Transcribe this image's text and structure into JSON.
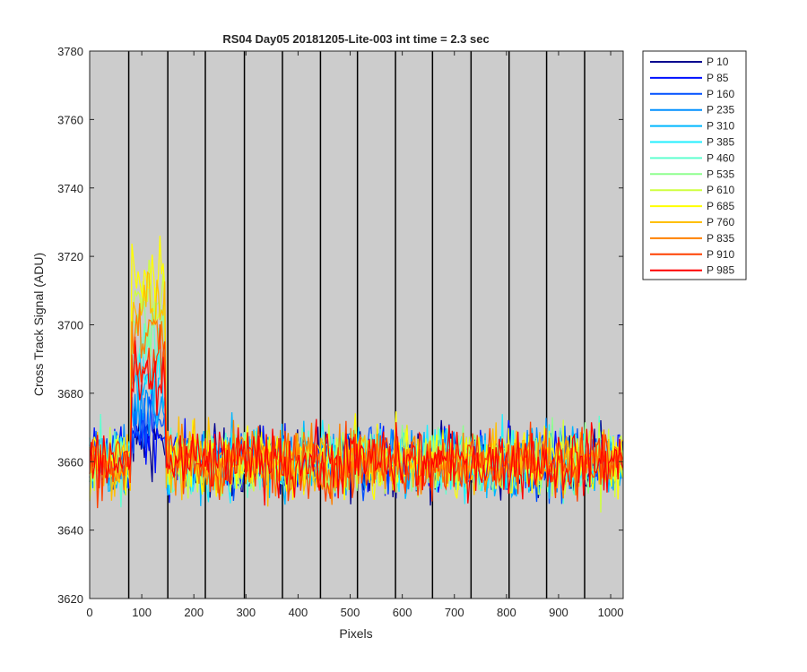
{
  "chart_data": {
    "type": "line",
    "title": "RS04 Day05 20181205-Lite-003 int time = 2.3 sec",
    "xlabel": "Pixels",
    "ylabel": "Cross Track Signal (ADU)",
    "xlim": [
      0,
      1024
    ],
    "ylim": [
      3620,
      3780
    ],
    "xticks": [
      0,
      100,
      200,
      300,
      400,
      500,
      600,
      700,
      800,
      900,
      1000
    ],
    "yticks": [
      3620,
      3640,
      3660,
      3680,
      3700,
      3720,
      3740,
      3760,
      3780
    ],
    "grid": false,
    "background": "#cccccc",
    "legend_position": "outside-top-right",
    "vertical_lines_x": [
      75,
      150,
      222,
      297,
      370,
      443,
      514,
      587,
      658,
      732,
      805,
      877,
      950
    ],
    "baseline": 3660,
    "noise_amplitude": 11,
    "bump": {
      "x_range": [
        80,
        145
      ],
      "note_peak_values": {
        "P 10": 3667,
        "P 85": 3669,
        "P 160": 3672,
        "P 235": 3676,
        "P 310": 3682,
        "P 385": 3688,
        "P 460": 3694,
        "P 535": 3701,
        "P 610": 3709,
        "P 685": 3715,
        "P 760": 3706,
        "P 835": 3697,
        "P 910": 3689,
        "P 985": 3682
      }
    },
    "series": [
      {
        "name": "P 10",
        "color": "#00008f"
      },
      {
        "name": "P 85",
        "color": "#0010ff"
      },
      {
        "name": "P 160",
        "color": "#0050ff"
      },
      {
        "name": "P 235",
        "color": "#0090ff"
      },
      {
        "name": "P 310",
        "color": "#00b8ff"
      },
      {
        "name": "P 385",
        "color": "#20efff"
      },
      {
        "name": "P 460",
        "color": "#60ffcf"
      },
      {
        "name": "P 535",
        "color": "#8fff8f"
      },
      {
        "name": "P 610",
        "color": "#cfff40"
      },
      {
        "name": "P 685",
        "color": "#ffff00"
      },
      {
        "name": "P 760",
        "color": "#ffbf00"
      },
      {
        "name": "P 835",
        "color": "#ff8000"
      },
      {
        "name": "P 910",
        "color": "#ff4000"
      },
      {
        "name": "P 985",
        "color": "#ff0000"
      }
    ]
  }
}
